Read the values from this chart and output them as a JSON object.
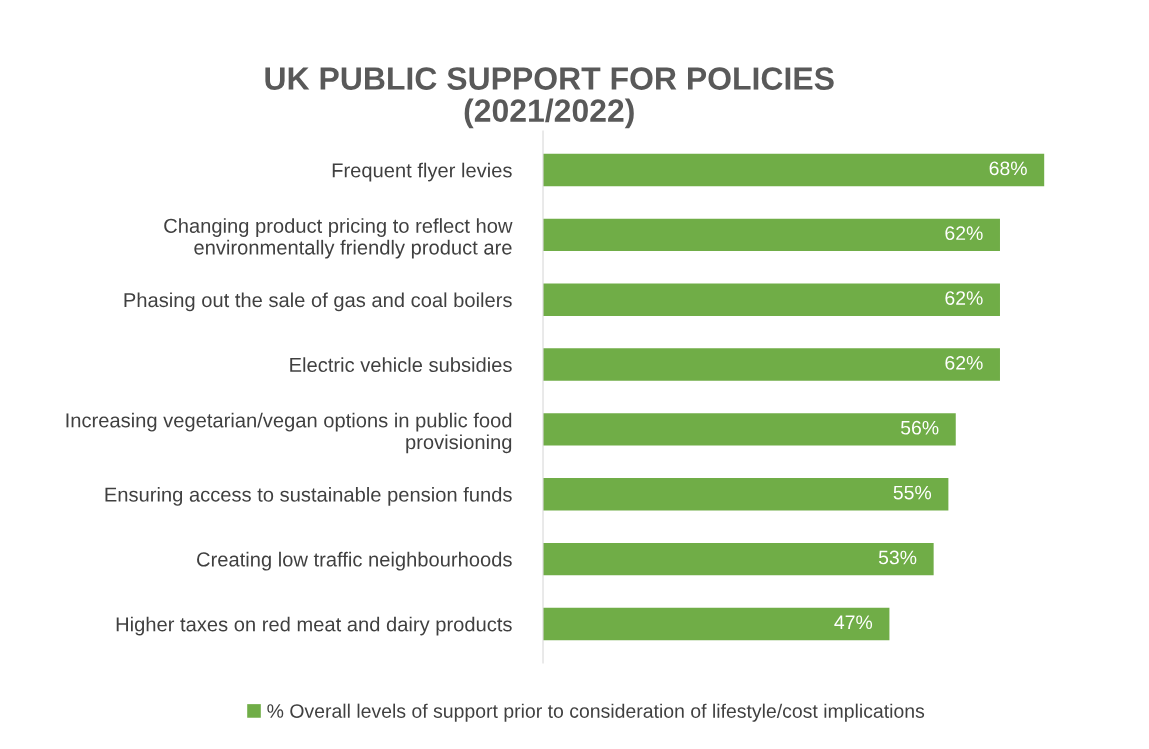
{
  "chart_data": {
    "type": "bar",
    "orientation": "horizontal",
    "title": "UK PUBLIC SUPPORT FOR POLICIES\n(2021/2022)",
    "categories": [
      "Frequent flyer levies",
      "Changing product pricing to reflect how\nenvironmentally friendly product are",
      "Phasing out the sale of gas and coal boilers",
      "Electric vehicle subsidies",
      "Increasing vegetarian/vegan options in public food\nprovisioning",
      "Ensuring access to sustainable pension funds",
      "Creating low traffic neighbourhoods",
      "Higher taxes on red meat and dairy products"
    ],
    "series": [
      {
        "name": "% Overall levels of support prior to consideration of lifestyle/cost implications",
        "color": "#70ad47",
        "values": [
          68,
          62,
          62,
          62,
          56,
          55,
          53,
          47
        ],
        "value_labels": [
          "68%",
          "62%",
          "62%",
          "62%",
          "56%",
          "55%",
          "53%",
          "47%"
        ]
      }
    ],
    "tick_labels": "y",
    "legend": "bottom",
    "grid": false
  }
}
